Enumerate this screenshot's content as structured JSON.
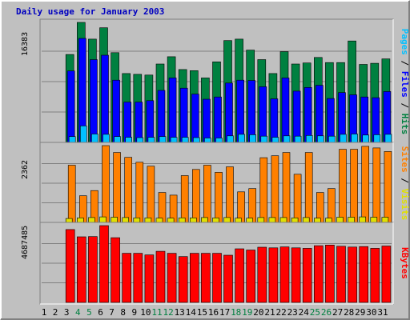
{
  "chart_data": {
    "type": "bar",
    "title": "Daily usage for January 2003",
    "categories": [
      "1",
      "2",
      "3",
      "4",
      "5",
      "6",
      "7",
      "8",
      "9",
      "10",
      "11",
      "12",
      "13",
      "14",
      "15",
      "16",
      "17",
      "18",
      "19",
      "20",
      "21",
      "22",
      "23",
      "24",
      "25",
      "26",
      "27",
      "28",
      "29",
      "30",
      "31"
    ],
    "weekend_days": [
      "4",
      "5",
      "11",
      "12",
      "18",
      "19",
      "25",
      "26"
    ],
    "panels": [
      {
        "id": "hits",
        "ymax": 16383,
        "ymax_label": "16383",
        "right_label": [
          {
            "text": "Pages",
            "color": "#00c0ff"
          },
          {
            "text": " / ",
            "color": "#000000"
          },
          {
            "text": "Files",
            "color": "#0000ff"
          },
          {
            "text": " / ",
            "color": "#000000"
          },
          {
            "text": "Hits",
            "color": "#008040"
          }
        ],
        "series": [
          {
            "name": "Hits",
            "color": "#008040",
            "values": [
              0,
              0,
              12000,
              16383,
              14100,
              15650,
              12250,
              9400,
              9300,
              9200,
              10700,
              11700,
              9950,
              9800,
              8800,
              11000,
              13900,
              14100,
              12600,
              11300,
              9400,
              12400,
              10700,
              10850,
              11600,
              10900,
              10900,
              13850,
              10650,
              10800,
              11400
            ]
          },
          {
            "name": "Files",
            "color": "#0000ff",
            "values": [
              0,
              0,
              9750,
              14200,
              11300,
              11900,
              8500,
              5500,
              5500,
              5700,
              7100,
              8800,
              7400,
              6600,
              5900,
              6200,
              8100,
              8500,
              8450,
              7600,
              5950,
              8800,
              7000,
              7500,
              7800,
              6000,
              6800,
              6500,
              6200,
              6100,
              6950
            ]
          },
          {
            "name": "Pages",
            "color": "#00c0ff",
            "values": [
              0,
              0,
              800,
              2250,
              1150,
              1100,
              800,
              700,
              650,
              700,
              800,
              700,
              700,
              650,
              600,
              600,
              900,
              1100,
              1050,
              850,
              700,
              900,
              850,
              950,
              900,
              850,
              1100,
              1150,
              1000,
              1050,
              1100
            ]
          }
        ]
      },
      {
        "id": "visits",
        "ymax": 2362,
        "ymax_label": "2362",
        "right_label": [
          {
            "text": "Sites",
            "color": "#ff8000"
          },
          {
            "text": " / ",
            "color": "#000000"
          },
          {
            "text": "Visits",
            "color": "#e0e000"
          }
        ],
        "series": [
          {
            "name": "Sites",
            "color": "#ff8000",
            "values": [
              0,
              0,
              1760,
              820,
              980,
              2362,
              2150,
              2000,
              1850,
              1730,
              920,
              840,
              1440,
              1630,
              1760,
              1540,
              1710,
              940,
              1040,
              1990,
              2050,
              2150,
              1480,
              2150,
              920,
              1040,
              2250,
              2250,
              2340,
              2290,
              2180
            ]
          },
          {
            "name": "Visits",
            "color": "#e0e000",
            "values": [
              0,
              0,
              120,
              140,
              150,
              170,
              160,
              150,
              140,
              140,
              130,
              130,
              140,
              140,
              150,
              140,
              150,
              130,
              130,
              150,
              150,
              150,
              140,
              150,
              130,
              130,
              160,
              160,
              170,
              160,
              160
            ]
          }
        ]
      },
      {
        "id": "kbytes",
        "ymax": 4687485,
        "ymax_label": "4687485",
        "right_label": [
          {
            "text": "KBytes",
            "color": "#ff0000"
          }
        ],
        "series": [
          {
            "name": "KBytes",
            "color": "#ff0000",
            "values": [
              0,
              0,
              4450000,
              4005000,
              4020000,
              4687485,
              3950000,
              3000000,
              3000000,
              2900000,
              3120000,
              3000000,
              2800000,
              3000000,
              3000000,
              3000000,
              2880000,
              3270000,
              3200000,
              3370000,
              3330000,
              3390000,
              3330000,
              3300000,
              3460000,
              3500000,
              3430000,
              3380000,
              3410000,
              3300000,
              3440000
            ]
          }
        ]
      }
    ]
  }
}
